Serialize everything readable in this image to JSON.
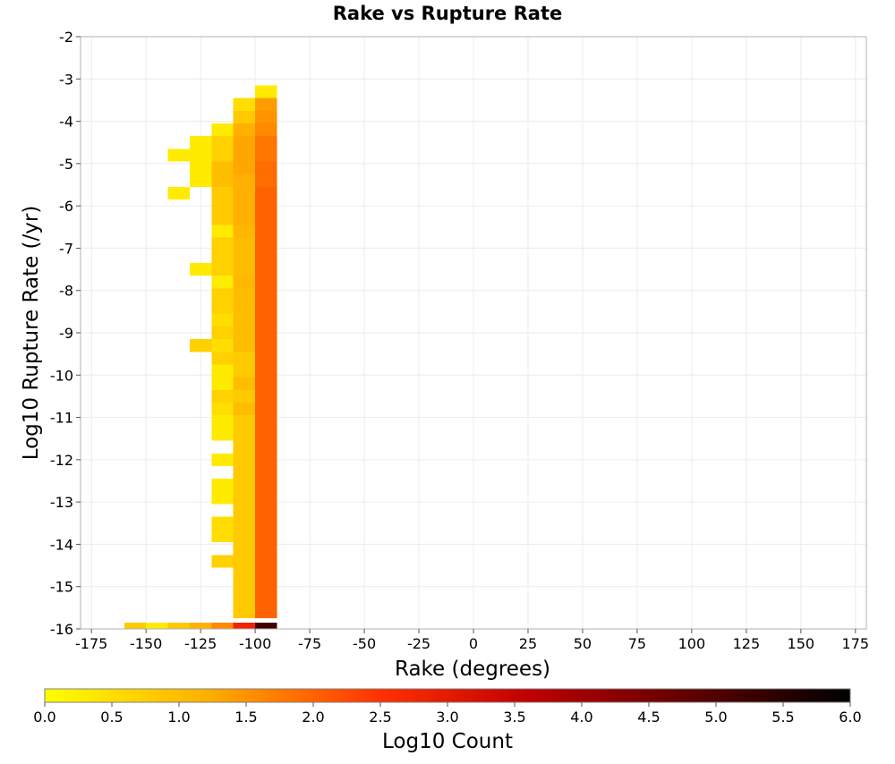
{
  "chart_data": {
    "type": "heatmap",
    "title": "Rake vs Rupture Rate",
    "xlabel": "Rake (degrees)",
    "ylabel": "Log10 Rupture Rate (/yr)",
    "xlim": [
      -180,
      180
    ],
    "ylim": [
      -16,
      -2
    ],
    "xticks": [
      -175,
      -150,
      -125,
      -100,
      -75,
      -50,
      -25,
      0,
      25,
      50,
      75,
      100,
      125,
      150,
      175
    ],
    "yticks": [
      -2,
      -3,
      -4,
      -5,
      -6,
      -7,
      -8,
      -9,
      -10,
      -11,
      -12,
      -13,
      -14,
      -15,
      -16
    ],
    "bin_size_x": 10,
    "bin_size_y": 0.3,
    "grid": true,
    "colorbar": {
      "label": "Log10 Count",
      "min": 0.0,
      "max": 6.0,
      "ticks": [
        "0.0",
        "0.5",
        "1.0",
        "1.5",
        "2.0",
        "2.5",
        "3.0",
        "3.5",
        "4.0",
        "4.5",
        "5.0",
        "5.5",
        "6.0"
      ],
      "colors": [
        "#ffff00",
        "#ffa500",
        "#ff0000",
        "#800000",
        "#000000"
      ]
    },
    "columns": [
      {
        "x": -155,
        "cells": [
          [
            -16,
            0.8
          ]
        ]
      },
      {
        "x": -145,
        "cells": [
          [
            -16,
            0.3
          ]
        ]
      },
      {
        "x": -135,
        "cells": [
          [
            -16,
            0.8
          ],
          [
            -4.8,
            0.3
          ],
          [
            -5.7,
            0.3
          ]
        ]
      },
      {
        "x": -125,
        "cells": [
          [
            -16,
            1.2
          ],
          [
            -4.8,
            0.3
          ],
          [
            -5.1,
            0.3
          ],
          [
            -5.4,
            0.3
          ],
          [
            -4.5,
            0.3
          ],
          [
            -7.5,
            0.3
          ],
          [
            -9.3,
            0.7
          ]
        ]
      },
      {
        "x": -115,
        "cells": [
          [
            -16,
            1.6
          ],
          [
            -4.2,
            0.3
          ],
          [
            -4.5,
            0.7
          ],
          [
            -4.8,
            0.7
          ],
          [
            -5.1,
            1.0
          ],
          [
            -5.4,
            1.0
          ],
          [
            -5.7,
            0.8
          ],
          [
            -6.0,
            0.8
          ],
          [
            -6.3,
            0.8
          ],
          [
            -6.6,
            0.3
          ],
          [
            -6.9,
            0.7
          ],
          [
            -7.2,
            0.7
          ],
          [
            -7.5,
            0.7
          ],
          [
            -7.8,
            0.3
          ],
          [
            -8.1,
            0.7
          ],
          [
            -8.4,
            0.7
          ],
          [
            -8.7,
            0.5
          ],
          [
            -9.0,
            0.7
          ],
          [
            -9.3,
            0.5
          ],
          [
            -9.6,
            0.7
          ],
          [
            -9.9,
            0.3
          ],
          [
            -10.2,
            0.3
          ],
          [
            -10.5,
            0.7
          ],
          [
            -10.8,
            0.5
          ],
          [
            -11.1,
            0.3
          ],
          [
            -11.4,
            0.3
          ],
          [
            -12.0,
            0.3
          ],
          [
            -12.6,
            0.3
          ],
          [
            -12.9,
            0.3
          ],
          [
            -13.5,
            0.5
          ],
          [
            -13.8,
            0.5
          ],
          [
            -14.4,
            0.7
          ]
        ]
      },
      {
        "x": -105,
        "cells": [
          [
            -16,
            2.8
          ],
          [
            -3.6,
            0.5
          ],
          [
            -3.9,
            0.8
          ],
          [
            -4.2,
            1.2
          ],
          [
            -4.5,
            1.3
          ],
          [
            -4.8,
            1.3
          ],
          [
            -5.1,
            1.3
          ],
          [
            -5.4,
            1.2
          ],
          [
            -5.7,
            1.2
          ],
          [
            -6.0,
            1.2
          ],
          [
            -6.3,
            1.2
          ],
          [
            -6.6,
            1.1
          ],
          [
            -6.9,
            1.0
          ],
          [
            -7.2,
            1.0
          ],
          [
            -7.5,
            1.0
          ],
          [
            -7.8,
            1.1
          ],
          [
            -8.1,
            1.0
          ],
          [
            -8.4,
            1.0
          ],
          [
            -8.7,
            1.0
          ],
          [
            -9.0,
            1.0
          ],
          [
            -9.3,
            1.0
          ],
          [
            -9.6,
            0.8
          ],
          [
            -9.9,
            0.8
          ],
          [
            -10.2,
            1.0
          ],
          [
            -10.5,
            0.8
          ],
          [
            -10.8,
            1.0
          ],
          [
            -11.1,
            0.8
          ],
          [
            -11.4,
            0.8
          ],
          [
            -11.7,
            0.8
          ],
          [
            -12.0,
            0.8
          ],
          [
            -12.3,
            0.8
          ],
          [
            -12.6,
            0.8
          ],
          [
            -12.9,
            0.8
          ],
          [
            -13.2,
            0.8
          ],
          [
            -13.5,
            0.8
          ],
          [
            -13.8,
            0.8
          ],
          [
            -14.1,
            0.8
          ],
          [
            -14.4,
            0.8
          ],
          [
            -14.7,
            0.8
          ],
          [
            -15.0,
            0.8
          ],
          [
            -15.3,
            0.8
          ],
          [
            -15.6,
            0.8
          ]
        ]
      },
      {
        "x": -95,
        "cells": [
          [
            -16,
            5.2
          ],
          [
            -3.3,
            0.3
          ],
          [
            -3.6,
            1.4
          ],
          [
            -3.9,
            1.5
          ],
          [
            -4.2,
            1.6
          ],
          [
            -4.5,
            1.8
          ],
          [
            -4.8,
            1.8
          ],
          [
            -5.1,
            1.9
          ],
          [
            -5.4,
            1.9
          ],
          [
            -5.7,
            2.0
          ],
          [
            -6.0,
            2.0
          ],
          [
            -6.3,
            2.0
          ],
          [
            -6.6,
            2.0
          ],
          [
            -6.9,
            2.0
          ],
          [
            -7.2,
            2.0
          ],
          [
            -7.5,
            2.0
          ],
          [
            -7.8,
            2.0
          ],
          [
            -8.1,
            2.0
          ],
          [
            -8.4,
            2.0
          ],
          [
            -8.7,
            2.0
          ],
          [
            -9.0,
            2.0
          ],
          [
            -9.3,
            2.0
          ],
          [
            -9.6,
            2.0
          ],
          [
            -9.9,
            2.0
          ],
          [
            -10.2,
            2.0
          ],
          [
            -10.5,
            2.0
          ],
          [
            -10.8,
            2.0
          ],
          [
            -11.1,
            2.0
          ],
          [
            -11.4,
            2.0
          ],
          [
            -11.7,
            2.0
          ],
          [
            -12.0,
            2.0
          ],
          [
            -12.3,
            2.0
          ],
          [
            -12.6,
            2.0
          ],
          [
            -12.9,
            2.0
          ],
          [
            -13.2,
            2.0
          ],
          [
            -13.5,
            2.0
          ],
          [
            -13.8,
            2.0
          ],
          [
            -14.1,
            2.0
          ],
          [
            -14.4,
            2.0
          ],
          [
            -14.7,
            2.0
          ],
          [
            -15.0,
            2.0
          ],
          [
            -15.3,
            2.0
          ],
          [
            -15.6,
            2.0
          ]
        ]
      }
    ]
  }
}
